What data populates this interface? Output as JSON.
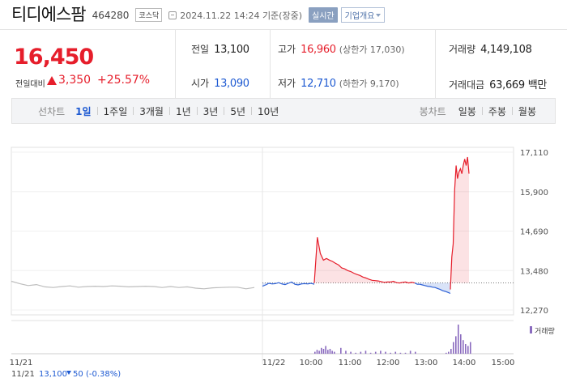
{
  "header": {
    "name": "티디에스팜",
    "code": "464280",
    "market": "코스닥",
    "timestamp": "2024.11.22 14:24 기준(장중)",
    "realtime": "실시간",
    "company_info": "기업개요"
  },
  "quote": {
    "price": "16,450",
    "change_label": "전일대비",
    "change": "3,350",
    "change_pct": "+25.57%",
    "prev_label": "전일",
    "prev": "13,100",
    "high_label": "고가",
    "high": "16,960",
    "upper_limit": "(상한가 17,030)",
    "volume_label": "거래량",
    "volume": "4,149,108",
    "open_label": "시가",
    "open": "13,090",
    "low_label": "저가",
    "low": "12,710",
    "lower_limit": "(하한가 9,170)",
    "amount_label": "거래대금",
    "amount": "63,669 백만",
    "colors": {
      "up": "#e61e2b",
      "down": "#1e5ad2"
    }
  },
  "tabs": {
    "line_label": "선차트",
    "line_tabs": [
      "1일",
      "1주일",
      "3개월",
      "1년",
      "3년",
      "5년",
      "10년"
    ],
    "active": "1일",
    "candle_label": "봉차트",
    "candle_tabs": [
      "일봉",
      "주봉",
      "월봉"
    ]
  },
  "chart_data": {
    "type": "line",
    "y_ticks": [
      "17,110",
      "15,900",
      "14,690",
      "13,480",
      "12,270"
    ],
    "ylim": [
      12270,
      17110
    ],
    "x_ticks": [
      "11/21",
      "11/22",
      "10:00",
      "11:00",
      "12:00",
      "13:00",
      "14:00",
      "15:00"
    ],
    "baseline": 13100,
    "prev_day_summary": {
      "date": "11/21",
      "close": "13,100",
      "change": "50",
      "change_pct": "(-0.38%)"
    },
    "volume_legend": "거래량",
    "series": [
      {
        "values": [
          13150,
          13080,
          13020,
          13050,
          12980,
          12960,
          12990,
          13010,
          12970,
          12990,
          13000,
          12990,
          13010,
          13000,
          12980,
          12990,
          13000,
          12990,
          12960,
          12990,
          12960,
          12980,
          12940,
          12920,
          12950,
          12960,
          12970,
          12970,
          12920,
          12960
        ]
      },
      {
        "values": [
          13000,
          13040,
          13090,
          13070,
          13080,
          13110,
          13070,
          13050,
          13090,
          13130,
          13060,
          13040,
          13070,
          13080,
          13070,
          13090,
          13060
        ]
      },
      {
        "values": [
          13100,
          14500,
          14000,
          13800,
          13850,
          13800,
          13760,
          13700,
          13650,
          13560,
          13530,
          13480,
          13450,
          13400,
          13360,
          13330,
          13280,
          13250,
          13210,
          13180,
          13170,
          13160,
          13140,
          13120,
          13130,
          13130,
          13150,
          13110,
          13100,
          13120,
          13130,
          13100,
          13120,
          13100
        ]
      },
      {
        "values": [
          13100,
          13060,
          13060,
          13040,
          13020,
          13000,
          12990,
          12970,
          12960,
          12930,
          12900,
          12860,
          12840,
          12810,
          12780
        ]
      },
      {
        "values": [
          12900,
          13900,
          14300,
          15950,
          16700,
          16300,
          16500,
          16600,
          16450,
          16700,
          16900,
          16700,
          16960,
          16450
        ]
      }
    ],
    "volume": [
      2,
      4,
      3,
      6,
      5,
      8,
      4,
      5,
      3,
      2,
      6,
      3,
      2,
      1,
      2,
      3,
      1,
      2,
      3,
      2,
      1,
      2,
      1,
      1,
      3,
      2,
      1,
      2,
      5,
      12,
      18,
      30,
      20,
      14,
      10,
      8,
      12
    ]
  }
}
